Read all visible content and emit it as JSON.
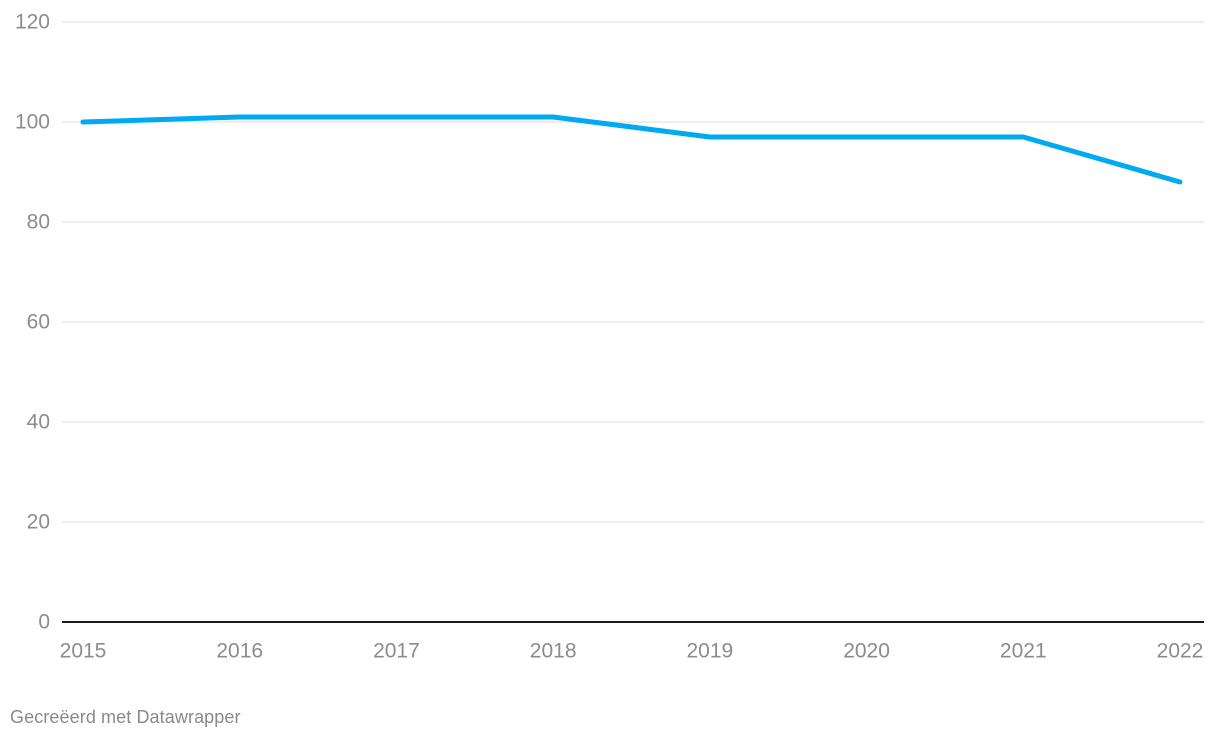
{
  "chart_data": {
    "type": "line",
    "categories": [
      "2015",
      "2016",
      "2017",
      "2018",
      "2019",
      "2020",
      "2021",
      "2022"
    ],
    "values": [
      100,
      101,
      101,
      101,
      97,
      97,
      97,
      88
    ],
    "title": "",
    "xlabel": "",
    "ylabel": "",
    "ylim": [
      0,
      120
    ],
    "y_ticks": [
      0,
      20,
      40,
      60,
      80,
      100,
      120
    ],
    "grid": true,
    "legend": "none",
    "colors": {
      "line": "#00aaf0",
      "grid": "#e9e9e9",
      "baseline": "#1a1a1a",
      "tick_label": "#8c8c8c"
    },
    "line_width": 5
  },
  "footer": {
    "attribution": "Gecreëerd met Datawrapper"
  }
}
